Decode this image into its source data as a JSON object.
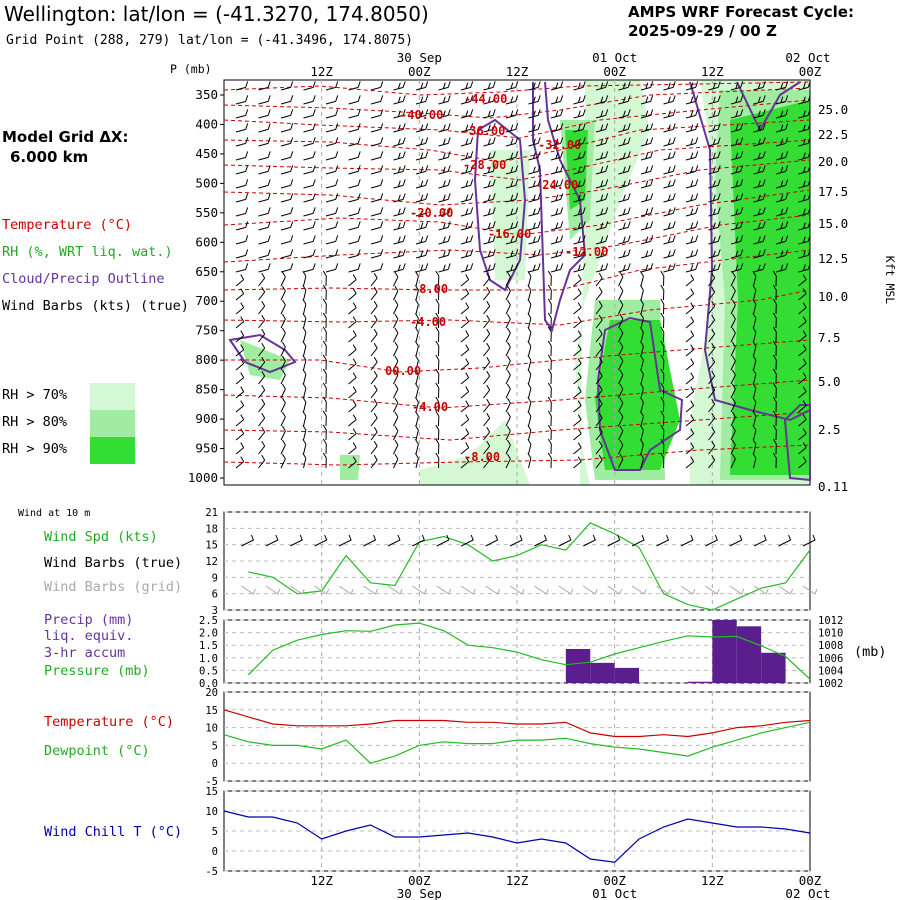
{
  "header": {
    "title": "Wellington:  lat/lon = (-41.3270, 174.8050)",
    "grid_point": "Grid Point (288, 279) lat/lon = (-41.3496, 174.8075)",
    "system": "AMPS WRF Forecast Cycle:",
    "cycle": "2025-09-29 / 00  Z",
    "model_grid_title": "Model Grid ΔX:",
    "model_grid_value": "6.000 km"
  },
  "legend": {
    "temperature": "Temperature (°C)",
    "rh": "RH (%, WRT liq. wat.)",
    "cloud": "Cloud/Precip Outline",
    "wind": "Wind Barbs (kts) (true)",
    "rh70": "RH > 70%",
    "rh80": "RH > 80%",
    "rh90": "RH > 90%",
    "rh70_color": "#d4f8d4",
    "rh80_color": "#a0eca0",
    "rh90_color": "#33dd33"
  },
  "colors": {
    "temperature": "#cc0000",
    "rh_green": "#22bb22",
    "cloud": "#663399",
    "precip": "#5a1f8c",
    "wind_chill": "#0000aa",
    "grid_barbs": "#a8a8a8"
  },
  "time_axis": {
    "ticks": [
      "12Z",
      "00Z",
      "12Z",
      "00Z",
      "12Z",
      "00Z"
    ],
    "dates": [
      "30 Sep",
      "01 Oct",
      "02 Oct"
    ]
  },
  "panels": {
    "wind10": {
      "title": "Wind at 10 m",
      "label_spd": "Wind Spd (kts)",
      "label_true": "Wind Barbs (true)",
      "label_grid": "Wind Barbs (grid)"
    },
    "precip": {
      "label1": "Precip (mm)",
      "label2": "liq. equiv.",
      "label3": "3-hr accum",
      "label4": "Pressure (mb)",
      "unit": "(mb)"
    },
    "temp": {
      "label1": "Temperature (°C)",
      "label2": "Dewpoint (°C)"
    },
    "chill": {
      "label": "Wind Chill T (°C)"
    }
  },
  "chart_data": [
    {
      "type": "contour",
      "panel": "cross-section",
      "yaxis_left_label": "P (mb)",
      "pressure_levels": [
        350,
        400,
        450,
        500,
        550,
        600,
        650,
        700,
        750,
        800,
        850,
        900,
        950,
        1000
      ],
      "yaxis_right_label": "Kft MSL",
      "height_ticks": [
        "25.0",
        "22.5",
        "20.0",
        "17.5",
        "15.0",
        "12.5",
        "10.0",
        "7.5",
        "5.0",
        "2.5",
        "0.11"
      ],
      "temperature_contour_labels": [
        "-44.00",
        "-40.00",
        "-36.00",
        "-32.00",
        "-28.00",
        "-24.00",
        "-20.00",
        "-16.00",
        "-12.00",
        "-8.00",
        "-4.00",
        "00.00",
        "-4.00",
        "-8.00"
      ]
    },
    {
      "type": "line",
      "panel": "wind10",
      "x_hours": [
        3,
        6,
        9,
        12,
        15,
        18,
        21,
        24,
        27,
        30,
        33,
        36,
        39,
        42,
        45,
        48,
        51,
        54,
        57,
        60,
        63,
        66,
        69,
        72
      ],
      "series": [
        {
          "name": "Wind Spd (kts)",
          "values": [
            10,
            9,
            6,
            6.5,
            13,
            8,
            7.5,
            15.5,
            16.5,
            15,
            12,
            13,
            15,
            14,
            19,
            17,
            14.5,
            6,
            4,
            3,
            5,
            7,
            8,
            14
          ]
        }
      ],
      "yticks": [
        3,
        6,
        9,
        12,
        15,
        18,
        21
      ],
      "ylim": [
        3,
        21
      ]
    },
    {
      "type": "bar+line",
      "panel": "precip",
      "precip_bars": [
        {
          "x_hours": [
            42,
            45
          ],
          "value": 1.35
        },
        {
          "x_hours": [
            45,
            48
          ],
          "value": 0.8
        },
        {
          "x_hours": [
            48,
            51
          ],
          "value": 0.6
        },
        {
          "x_hours": [
            57,
            60
          ],
          "value": 0.05
        },
        {
          "x_hours": [
            60,
            63
          ],
          "value": 2.5
        },
        {
          "x_hours": [
            63,
            66
          ],
          "value": 2.25
        },
        {
          "x_hours": [
            66,
            69
          ],
          "value": 1.2
        }
      ],
      "pressure": {
        "name": "Pressure (mb)",
        "x_hours": [
          3,
          6,
          9,
          12,
          15,
          18,
          21,
          24,
          27,
          30,
          33,
          36,
          39,
          42,
          45,
          48,
          51,
          54,
          57,
          60,
          63,
          66,
          69,
          72
        ],
        "values": [
          1003.3,
          1007.2,
          1008.8,
          1009.7,
          1010.3,
          1010.2,
          1011.2,
          1011.5,
          1010.3,
          1008.0,
          1007.6,
          1006.9,
          1005.7,
          1004.9,
          1005.3,
          1006.6,
          1007.6,
          1008.6,
          1009.5,
          1009.3,
          1009.4,
          1007.9,
          1006.2,
          1002.6
        ]
      },
      "y_left_ticks": [
        "0.0",
        "0.5",
        "1.0",
        "1.5",
        "2.0",
        "2.5"
      ],
      "y_right_ticks": [
        "1002",
        "1004",
        "1006",
        "1008",
        "1010",
        "1012"
      ]
    },
    {
      "type": "line",
      "panel": "temp",
      "x_hours": [
        0,
        3,
        6,
        9,
        12,
        15,
        18,
        21,
        24,
        27,
        30,
        33,
        36,
        39,
        42,
        45,
        48,
        51,
        54,
        57,
        60,
        63,
        66,
        69,
        72
      ],
      "series": [
        {
          "name": "Temperature (°C)",
          "values": [
            15,
            13,
            11,
            10.5,
            10.5,
            10.5,
            11,
            12,
            12,
            12,
            11.5,
            11.5,
            11,
            11,
            11.5,
            8.5,
            7.5,
            7.5,
            8,
            7.5,
            8.5,
            10,
            10.5,
            11.5,
            12
          ]
        },
        {
          "name": "Dewpoint (°C)",
          "values": [
            8,
            6,
            5,
            5,
            4,
            6.5,
            0,
            2,
            5,
            6,
            5.5,
            5.5,
            6.5,
            6.5,
            7,
            5.5,
            4.5,
            4,
            3,
            2,
            4.5,
            6.5,
            8.5,
            10,
            11.5
          ]
        }
      ],
      "yticks": [
        "-5",
        "0",
        "5",
        "10",
        "15",
        "20"
      ],
      "ylim": [
        -5,
        20
      ]
    },
    {
      "type": "line",
      "panel": "chill",
      "x_hours": [
        0,
        3,
        6,
        9,
        12,
        15,
        18,
        21,
        24,
        27,
        30,
        33,
        36,
        39,
        42,
        45,
        48,
        51,
        54,
        57,
        60,
        63,
        66,
        69,
        72
      ],
      "series": [
        {
          "name": "Wind Chill T (°C)",
          "values": [
            10,
            8.5,
            8.5,
            7,
            3,
            5,
            6.5,
            3.5,
            3.5,
            4,
            4.5,
            3.5,
            2,
            3,
            2,
            -2,
            -2.8,
            3,
            6,
            8,
            7,
            6,
            6,
            5.5,
            4.5
          ]
        }
      ],
      "yticks": [
        "-5",
        "0",
        "5",
        "10",
        "15"
      ],
      "ylim": [
        -5,
        15
      ]
    }
  ]
}
